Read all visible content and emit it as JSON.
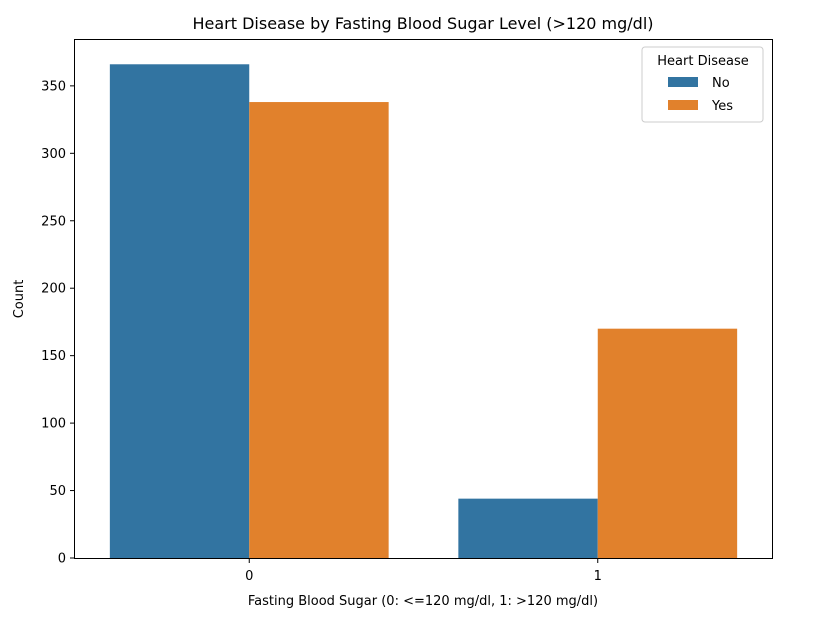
{
  "chart_data": {
    "type": "bar",
    "title": "Heart Disease by Fasting Blood Sugar Level (>120 mg/dl)",
    "xlabel": "Fasting Blood Sugar (0: <=120 mg/dl, 1: >120 mg/dl)",
    "ylabel": "Count",
    "categories": [
      "0",
      "1"
    ],
    "series": [
      {
        "name": "No",
        "color": "#3274a1",
        "values": [
          366,
          44
        ]
      },
      {
        "name": "Yes",
        "color": "#e1812c",
        "values": [
          338,
          170
        ]
      }
    ],
    "ylim": [
      0,
      384
    ],
    "yticks": [
      0,
      50,
      100,
      150,
      200,
      250,
      300,
      350
    ],
    "grid": false,
    "legend": {
      "title": "Heart Disease",
      "placement": "top-right"
    }
  }
}
